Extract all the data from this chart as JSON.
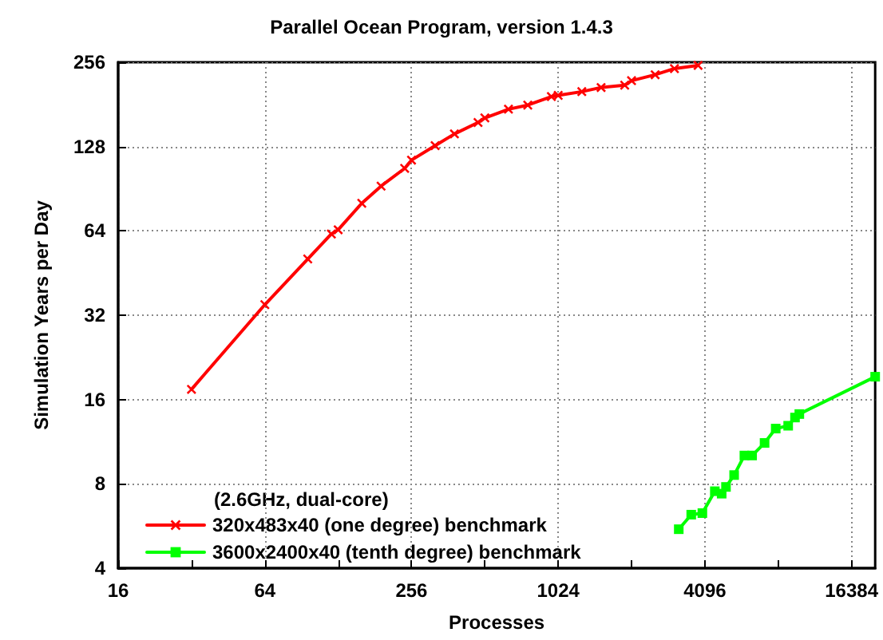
{
  "chart_data": {
    "type": "line",
    "title": "Parallel Ocean Program, version 1.4.3",
    "xlabel": "Processes",
    "ylabel": "Simulation Years per Day",
    "legend_title": "(2.6GHz, dual-core)",
    "log": "xy",
    "grid": true,
    "legend": "bottom left",
    "line_style": "solid",
    "xlim": [
      16,
      20480
    ],
    "xticks": [
      16,
      {
        "value": 32,
        "label": null
      },
      64,
      {
        "value": 128,
        "label": null
      },
      256,
      {
        "value": 512,
        "label": null
      },
      1024,
      {
        "value": 2048,
        "label": null
      },
      4096,
      {
        "value": 8192,
        "label": null
      },
      16384
    ],
    "ylim": [
      4,
      256
    ],
    "yticks": [
      4,
      8,
      16,
      32,
      64,
      128,
      256
    ],
    "series": [
      {
        "name": "320x483x40 (one degree) benchmark",
        "color": "#ff0000",
        "marker": "cross",
        "x": [
          32,
          64,
          96,
          120,
          128,
          160,
          192,
          240,
          256,
          320,
          384,
          480,
          512,
          640,
          768,
          960,
          1024,
          1280,
          1536,
          1920,
          2048,
          2560,
          3072,
          3840
        ],
        "values": [
          17.4,
          34.9,
          50.8,
          62.4,
          64.6,
          80.3,
          92.5,
          107,
          114.5,
          129,
          142,
          156,
          162,
          174,
          180,
          193,
          195,
          201,
          208,
          212,
          220,
          231,
          243,
          249.5
        ]
      },
      {
        "name": "3600x2400x40 (tenth degree) benchmark",
        "color": "#00ff00",
        "marker": "square",
        "x": [
          3200,
          3600,
          4000,
          4500,
          4800,
          5000,
          5400,
          5950,
          6400,
          7200,
          8000,
          9000,
          9600,
          10000,
          20480
        ],
        "values": [
          5.51,
          6.21,
          6.29,
          7.53,
          7.38,
          7.8,
          8.6,
          10.1,
          10.1,
          11.2,
          12.6,
          12.9,
          13.8,
          14.2,
          19.3
        ]
      }
    ]
  }
}
